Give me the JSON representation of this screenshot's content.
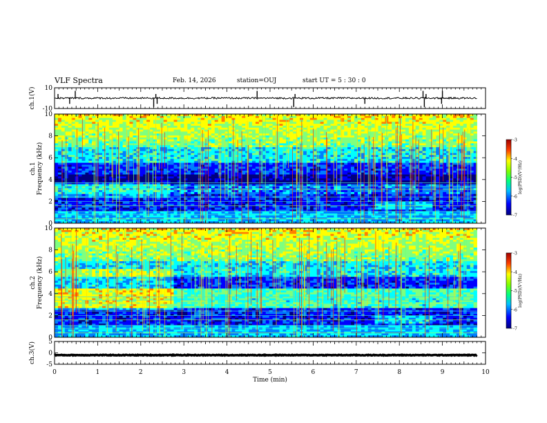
{
  "header": {
    "title": "VLF Spectra",
    "date": "Feb. 14, 2026",
    "station": "station=OUJ",
    "start": "start  UT =   5  : 30 : 0"
  },
  "chart_data": {
    "type": "heatmap",
    "title": "VLF Spectra",
    "xlabel": "Time  (min)",
    "xlim": [
      0,
      10
    ],
    "x_ticks": [
      "0",
      "1",
      "2",
      "3",
      "4",
      "5",
      "6",
      "7",
      "8",
      "9",
      "10"
    ],
    "data_end_min": 9.8,
    "panels": [
      {
        "name": "ch1-waveform",
        "type": "line",
        "ylabel": "ch.1(V)",
        "ylim": [
          -10,
          10
        ],
        "y_ticks": [
          "10",
          "-10"
        ],
        "baseline": 0,
        "noise_amplitude": 0.8,
        "spikes_min": [
          0.08,
          0.35,
          0.48,
          2.3,
          2.35,
          2.38,
          4.7,
          5.55,
          5.58,
          7.2,
          8.55,
          8.58,
          8.62,
          8.98,
          9.0
        ]
      },
      {
        "name": "ch1-spectrogram",
        "type": "heatmap",
        "ylabel": "ch.1\nFrequency  (kHz)",
        "ylim": [
          0,
          10
        ],
        "y_ticks": [
          "0",
          "2",
          "4",
          "6",
          "8",
          "10"
        ],
        "colorbar": {
          "label": "log(PSD)(V²/Hz)",
          "range": [
            -7,
            -3
          ],
          "ticks": [
            "-3",
            "-4",
            "-5",
            "-6",
            "-7"
          ]
        }
      },
      {
        "name": "ch2-spectrogram",
        "type": "heatmap",
        "ylabel": "ch.2\nFrequency  (kHz)",
        "ylim": [
          0,
          10
        ],
        "y_ticks": [
          "0",
          "2",
          "4",
          "6",
          "8",
          "10"
        ],
        "colorbar": {
          "label": "log(PSD)(V²/Hz)",
          "range": [
            -7,
            -3
          ],
          "ticks": [
            "-3",
            "-4",
            "-5",
            "-6",
            "-7"
          ]
        }
      },
      {
        "name": "ch3-waveform",
        "type": "line",
        "ylabel": "ch.3(V)",
        "ylim": [
          -5,
          5
        ],
        "y_ticks": [
          "5",
          "0",
          "-5"
        ],
        "baseline": -1.0,
        "noise_amplitude": 0.15
      }
    ],
    "colormap": [
      "#00007f",
      "#0000ff",
      "#007fff",
      "#00ffff",
      "#7fff7f",
      "#ffff00",
      "#ff7f00",
      "#ff0000",
      "#7f0000"
    ]
  }
}
